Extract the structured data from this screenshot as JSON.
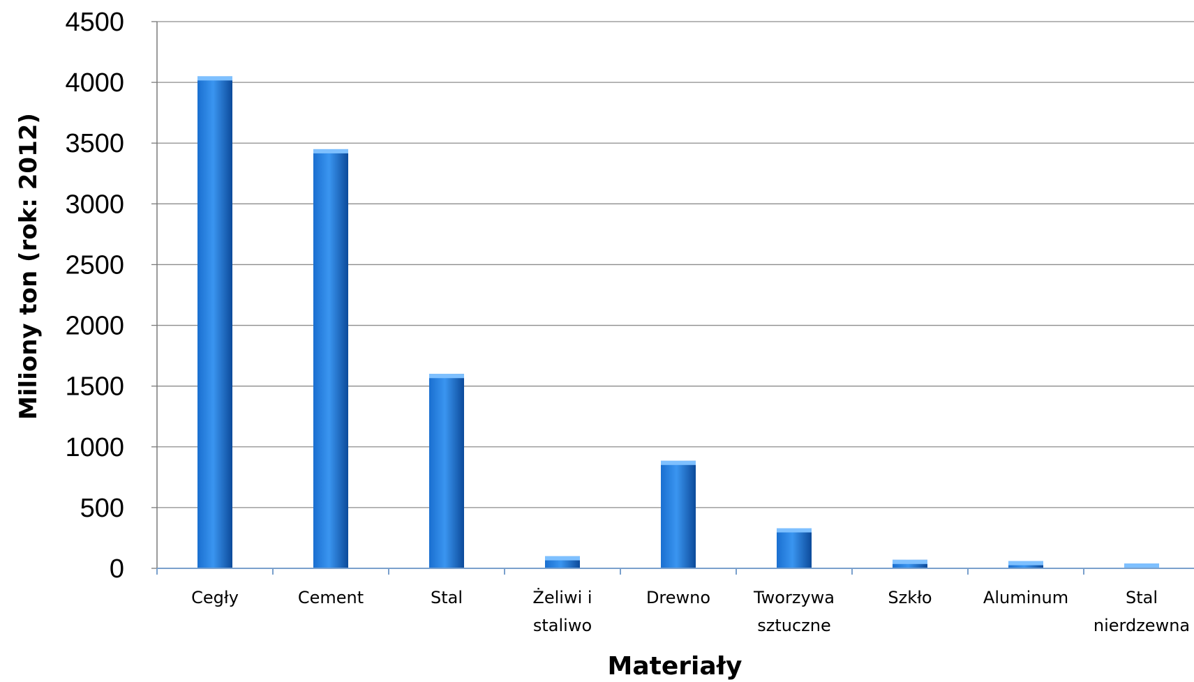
{
  "chart_data": {
    "type": "bar",
    "title": "",
    "xlabel": "Materiały",
    "ylabel": "Miliony ton (rok: 2012)",
    "categories": [
      [
        "Cegły"
      ],
      [
        "Cement"
      ],
      [
        "Stal"
      ],
      [
        "Żeliwi i",
        "staliwo"
      ],
      [
        "Drewno"
      ],
      [
        "Tworzywa",
        "sztuczne"
      ],
      [
        "Szkło"
      ],
      [
        "Aluminum"
      ],
      [
        "Stal",
        "nierdzewna"
      ]
    ],
    "values": [
      4050,
      3450,
      1600,
      100,
      885,
      330,
      70,
      60,
      40
    ],
    "ylim": [
      0,
      4500
    ],
    "yticks": [
      0,
      500,
      1000,
      1500,
      2000,
      2500,
      3000,
      3500,
      4000,
      4500
    ],
    "grid": true,
    "legend": "none",
    "colors": {
      "bar_light": "#3a95f0",
      "bar_mid": "#1a6fd0",
      "bar_dark": "#0c4a9a",
      "bar_top": "#7ec0ff",
      "grid": "#8c8c8c",
      "axis": "#7aa0cc"
    }
  }
}
